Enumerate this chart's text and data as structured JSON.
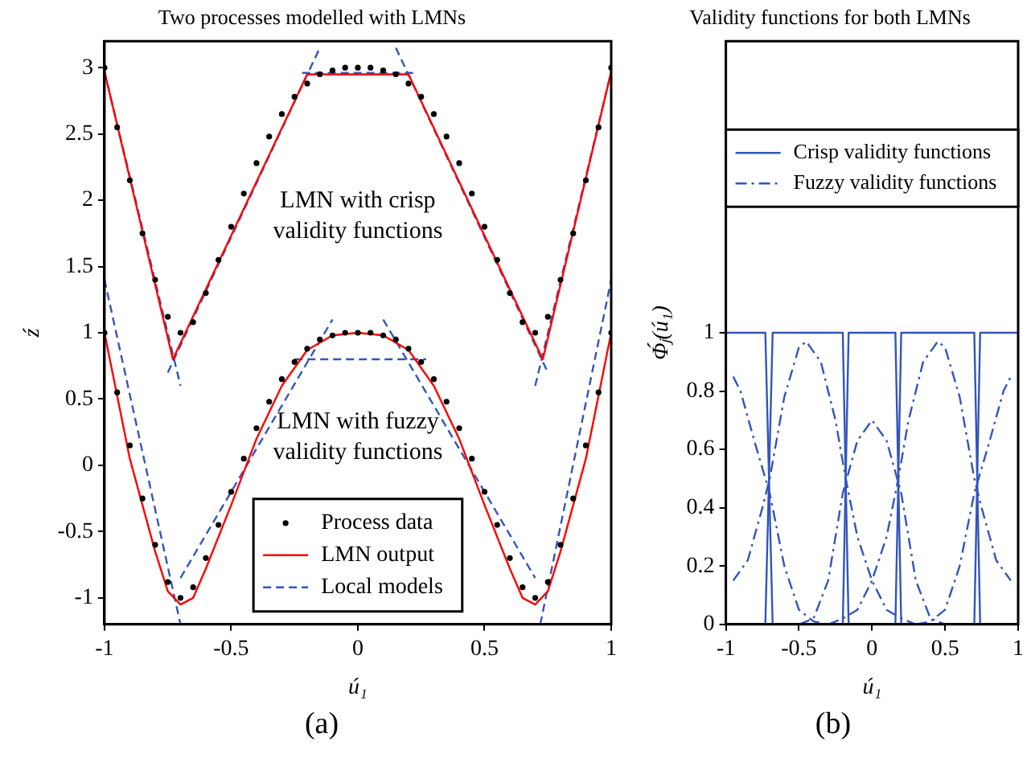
{
  "chart_data": [
    {
      "type": "line",
      "title": "Two processes modelled with LMNs",
      "xlabel": "ú₁",
      "ylabel": "ź",
      "xlim": [
        -1,
        1
      ],
      "xticks": [
        -1,
        -0.5,
        0,
        0.5,
        1
      ],
      "ylim": [
        -1.2,
        3.2
      ],
      "yticks": [
        -1,
        -0.5,
        0,
        0.5,
        1,
        1.5,
        2,
        2.5,
        3
      ],
      "legend": "bottom",
      "series": [
        {
          "name": "Process data",
          "type": "scatter",
          "marker": "circle",
          "color": "#000000",
          "x": [
            -1,
            -0.95,
            -0.9,
            -0.85,
            -0.8,
            -0.75,
            -0.7,
            -0.65,
            -0.6,
            -0.55,
            -0.5,
            -0.45,
            -0.4,
            -0.35,
            -0.3,
            -0.25,
            -0.2,
            -0.15,
            -0.1,
            -0.05,
            0,
            0.05,
            0.1,
            0.15,
            0.2,
            0.25,
            0.3,
            0.35,
            0.4,
            0.45,
            0.5,
            0.55,
            0.6,
            0.65,
            0.7,
            0.75,
            0.8,
            0.85,
            0.9,
            0.95,
            1
          ],
          "values": [
            3,
            2.55,
            2.15,
            1.75,
            1.4,
            1.12,
            1,
            1.08,
            1.3,
            1.55,
            1.8,
            2.05,
            2.28,
            2.48,
            2.65,
            2.78,
            2.88,
            2.95,
            2.98,
            3,
            3,
            3,
            2.98,
            2.95,
            2.88,
            2.78,
            2.65,
            2.48,
            2.28,
            2.05,
            1.8,
            1.55,
            1.3,
            1.08,
            1,
            1.12,
            1.4,
            1.75,
            2.15,
            2.55,
            3
          ]
        },
        {
          "type": "scatter",
          "marker": "circle",
          "color": "#000000",
          "x": [
            -1,
            -0.95,
            -0.9,
            -0.85,
            -0.8,
            -0.75,
            -0.7,
            -0.65,
            -0.6,
            -0.55,
            -0.5,
            -0.45,
            -0.4,
            -0.35,
            -0.3,
            -0.25,
            -0.2,
            -0.15,
            -0.1,
            -0.05,
            0,
            0.05,
            0.1,
            0.15,
            0.2,
            0.25,
            0.3,
            0.35,
            0.4,
            0.45,
            0.5,
            0.55,
            0.6,
            0.65,
            0.7,
            0.75,
            0.8,
            0.85,
            0.9,
            0.95,
            1
          ],
          "values": [
            1,
            0.55,
            0.15,
            -0.25,
            -0.6,
            -0.88,
            -1,
            -0.92,
            -0.7,
            -0.45,
            -0.2,
            0.05,
            0.28,
            0.48,
            0.65,
            0.78,
            0.88,
            0.95,
            0.98,
            1,
            1,
            1,
            0.98,
            0.95,
            0.88,
            0.78,
            0.65,
            0.48,
            0.28,
            0.05,
            -0.2,
            -0.45,
            -0.7,
            -0.92,
            -1,
            -0.88,
            -0.6,
            -0.25,
            0.15,
            0.55,
            1
          ]
        },
        {
          "name": "LMN output",
          "type": "line",
          "line_style": "solid",
          "color": "#ff0000",
          "x": [
            -1,
            -0.73,
            -0.2,
            0.2,
            0.73,
            1
          ],
          "values": [
            2.97,
            0.8,
            2.95,
            2.95,
            0.8,
            2.97
          ]
        },
        {
          "type": "line",
          "line_style": "solid",
          "color": "#ff0000",
          "x": [
            -1,
            -0.9,
            -0.8,
            -0.75,
            -0.7,
            -0.65,
            -0.6,
            -0.5,
            -0.4,
            -0.3,
            -0.2,
            -0.1,
            0,
            0.1,
            0.2,
            0.3,
            0.4,
            0.5,
            0.6,
            0.65,
            0.7,
            0.75,
            0.8,
            0.9,
            1
          ],
          "values": [
            1,
            0.05,
            -0.65,
            -0.95,
            -1.05,
            -1,
            -0.78,
            -0.3,
            0.2,
            0.6,
            0.87,
            0.98,
            1,
            0.98,
            0.87,
            0.6,
            0.2,
            -0.3,
            -0.78,
            -1,
            -1.05,
            -0.95,
            -0.65,
            0.05,
            1
          ]
        },
        {
          "name": "Local models",
          "type": "line",
          "line_style": "dashed",
          "color": "#3355bb",
          "x": [
            -1,
            -0.7
          ],
          "values": [
            2.97,
            0.6
          ]
        },
        {
          "type": "line",
          "line_style": "dashed",
          "color": "#3355bb",
          "x": [
            -0.75,
            -0.15
          ],
          "values": [
            0.7,
            3.15
          ]
        },
        {
          "type": "line",
          "line_style": "dashed",
          "color": "#3355bb",
          "x": [
            -0.22,
            0.22
          ],
          "values": [
            2.96,
            2.96
          ]
        },
        {
          "type": "line",
          "line_style": "dashed",
          "color": "#3355bb",
          "x": [
            0.15,
            0.75
          ],
          "values": [
            3.15,
            0.7
          ]
        },
        {
          "type": "line",
          "line_style": "dashed",
          "color": "#3355bb",
          "x": [
            0.7,
            1
          ],
          "values": [
            0.6,
            2.97
          ]
        },
        {
          "type": "line",
          "line_style": "dashed",
          "color": "#3355bb",
          "x": [
            -1,
            -0.7
          ],
          "values": [
            1.4,
            -1.2
          ]
        },
        {
          "type": "line",
          "line_style": "dashed",
          "color": "#3355bb",
          "x": [
            -0.7,
            -0.1
          ],
          "values": [
            -0.85,
            1.1
          ]
        },
        {
          "type": "line",
          "line_style": "dashed",
          "color": "#3355bb",
          "x": [
            -0.25,
            0.27
          ],
          "values": [
            0.8,
            0.8
          ]
        },
        {
          "type": "line",
          "line_style": "dashed",
          "color": "#3355bb",
          "x": [
            0.1,
            0.7
          ],
          "values": [
            1.1,
            -0.85
          ]
        },
        {
          "type": "line",
          "line_style": "dashed",
          "color": "#3355bb",
          "x": [
            0.72,
            1
          ],
          "values": [
            -1.2,
            1.4
          ]
        }
      ],
      "annotations": [
        "LMN with crisp\nvalidity functions",
        "LMN with fuzzy\nvalidity functions",
        "(a)"
      ]
    },
    {
      "type": "line",
      "title": "Validity functions for both LMNs",
      "xlabel": "ú₁",
      "ylabel": "Φ́ⱼ(ú₁)",
      "xlim": [
        -1,
        1
      ],
      "xticks": [
        -1,
        -0.5,
        0,
        0.5,
        1
      ],
      "ylim": [
        0,
        2
      ],
      "yticks": [
        0,
        0.2,
        0.4,
        0.6,
        0.8,
        1
      ],
      "legend": "top",
      "series": [
        {
          "name": "Crisp validity functions",
          "line_style": "solid",
          "color": "#3355bb",
          "x": [
            -1,
            -0.73,
            -0.68
          ],
          "values": [
            1,
            1,
            0
          ]
        },
        {
          "line_style": "solid",
          "color": "#3355bb",
          "x": [
            -0.73,
            -0.68,
            -0.2,
            -0.16
          ],
          "values": [
            0,
            1,
            1,
            0
          ]
        },
        {
          "line_style": "solid",
          "color": "#3355bb",
          "x": [
            -0.2,
            -0.16,
            0.16,
            0.2
          ],
          "values": [
            0,
            1,
            1,
            0
          ]
        },
        {
          "line_style": "solid",
          "color": "#3355bb",
          "x": [
            0.16,
            0.2,
            0.7,
            0.74
          ],
          "values": [
            0,
            1,
            1,
            0
          ]
        },
        {
          "line_style": "solid",
          "color": "#3355bb",
          "x": [
            0.7,
            0.74,
            1
          ],
          "values": [
            0,
            1,
            1
          ]
        },
        {
          "name": "Fuzzy validity functions",
          "line_style": "dashdot",
          "color": "#3355bb",
          "x": [
            -0.95,
            -0.9,
            -0.8,
            -0.7,
            -0.6,
            -0.5,
            -0.4,
            -0.3
          ],
          "values": [
            0.85,
            0.8,
            0.62,
            0.45,
            0.2,
            0.05,
            0.01,
            0
          ]
        },
        {
          "line_style": "dashdot",
          "color": "#3355bb",
          "x": [
            -0.95,
            -0.85,
            -0.75,
            -0.7,
            -0.6,
            -0.5,
            -0.45,
            -0.35,
            -0.25,
            -0.18,
            -0.1,
            0,
            0.1,
            0.2,
            0.3
          ],
          "values": [
            0.15,
            0.22,
            0.4,
            0.5,
            0.78,
            0.95,
            0.97,
            0.9,
            0.7,
            0.5,
            0.3,
            0.15,
            0.05,
            0.02,
            0
          ]
        },
        {
          "line_style": "dashdot",
          "color": "#3355bb",
          "x": [
            -0.5,
            -0.4,
            -0.3,
            -0.2,
            -0.1,
            0,
            0.1,
            0.2,
            0.3,
            0.4,
            0.5
          ],
          "values": [
            0,
            0.02,
            0.15,
            0.45,
            0.63,
            0.7,
            0.63,
            0.45,
            0.15,
            0.02,
            0
          ]
        },
        {
          "line_style": "dashdot",
          "color": "#3355bb",
          "x": [
            -0.3,
            -0.2,
            -0.1,
            0,
            0.1,
            0.18,
            0.25,
            0.35,
            0.45,
            0.5,
            0.6,
            0.7,
            0.75,
            0.85,
            0.95
          ],
          "values": [
            0,
            0.02,
            0.05,
            0.15,
            0.3,
            0.5,
            0.7,
            0.9,
            0.97,
            0.95,
            0.78,
            0.5,
            0.4,
            0.22,
            0.15
          ]
        },
        {
          "line_style": "dashdot",
          "color": "#3355bb",
          "x": [
            0.3,
            0.4,
            0.5,
            0.6,
            0.7,
            0.8,
            0.9,
            0.95
          ],
          "values": [
            0,
            0.01,
            0.05,
            0.2,
            0.45,
            0.62,
            0.8,
            0.85
          ]
        }
      ],
      "annotations": [
        "(b)"
      ]
    }
  ]
}
